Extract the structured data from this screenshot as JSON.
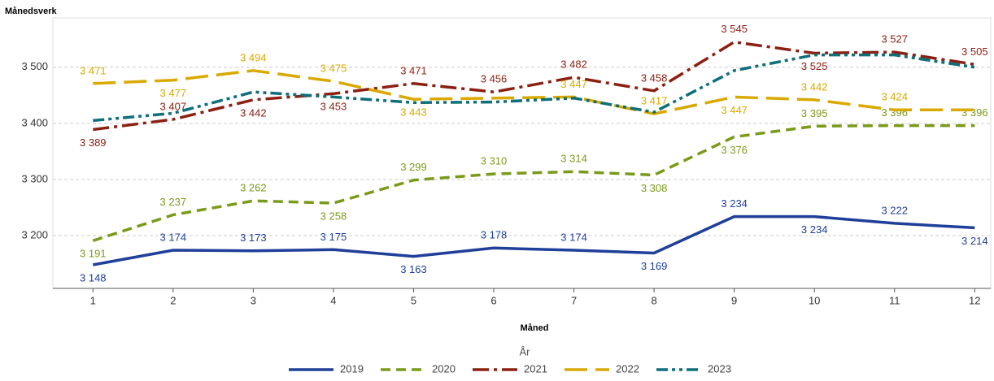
{
  "chart_data": {
    "type": "line",
    "y_axis_label": "Månedsverk",
    "x_axis_label": "Måned",
    "legend_title": "År",
    "x": [
      1,
      2,
      3,
      4,
      5,
      6,
      7,
      8,
      9,
      10,
      11,
      12
    ],
    "xlim": [
      0.5,
      12.2
    ],
    "xticks": [
      1,
      2,
      3,
      4,
      5,
      6,
      7,
      8,
      9,
      10,
      11,
      12
    ],
    "ylim": [
      3106,
      3588
    ],
    "yticks": [
      {
        "value": 3200,
        "label": "3 200"
      },
      {
        "value": 3300,
        "label": "3 300"
      },
      {
        "value": 3400,
        "label": "3 400"
      },
      {
        "value": 3500,
        "label": "3 500"
      }
    ],
    "grid": true,
    "legend": "bottom",
    "series": [
      {
        "name": "2019",
        "color": "#1f3f99",
        "values": [
          3148,
          3174,
          3173,
          3175,
          3163,
          3178,
          3174,
          3169,
          3234,
          3234,
          3222,
          3214
        ],
        "value_labels": [
          "3 148",
          "3 174",
          "3 173",
          "3 175",
          "3 163",
          "3 178",
          "3 174",
          "3 169",
          "3 234",
          "3 234",
          "3 222",
          "3 214"
        ]
      },
      {
        "name": "2020",
        "color": "#7a9a1a",
        "values": [
          3191,
          3237,
          3262,
          3258,
          3299,
          3310,
          3314,
          3308,
          3376,
          3395,
          3396,
          3396
        ],
        "value_labels": [
          "3 191",
          "3 237",
          "3 262",
          "3 258",
          "3 299",
          "3 310",
          "3 314",
          "3 308",
          "3 376",
          "3 395",
          "3 396",
          "3 396"
        ]
      },
      {
        "name": "2021",
        "color": "#8b2012",
        "values": [
          3389,
          3407,
          3442,
          3453,
          3471,
          3456,
          3482,
          3458,
          3545,
          3525,
          3527,
          3505
        ],
        "value_labels": [
          "3 389",
          "3 407",
          "3 442",
          "3 453",
          "3 471",
          "3 456",
          "3 482",
          "3 458",
          "3 545",
          "3 525",
          "3 527",
          "3 505"
        ]
      },
      {
        "name": "2022",
        "color": "#d9a900",
        "values": [
          3471,
          3477,
          3494,
          3475,
          3443,
          3445,
          3447,
          3417,
          3447,
          3442,
          3424,
          3424
        ],
        "value_labels": [
          "3 471",
          "3 477",
          "3 494",
          "3 475",
          "3 443",
          null,
          "3 447",
          "3 417",
          "3 447",
          "3 442",
          "3 424",
          null
        ]
      },
      {
        "name": "2023",
        "color": "#0e6e7a",
        "values": [
          3405,
          3418,
          3456,
          3447,
          3437,
          3438,
          3445,
          3420,
          3494,
          3522,
          3522,
          3500
        ]
      }
    ]
  }
}
